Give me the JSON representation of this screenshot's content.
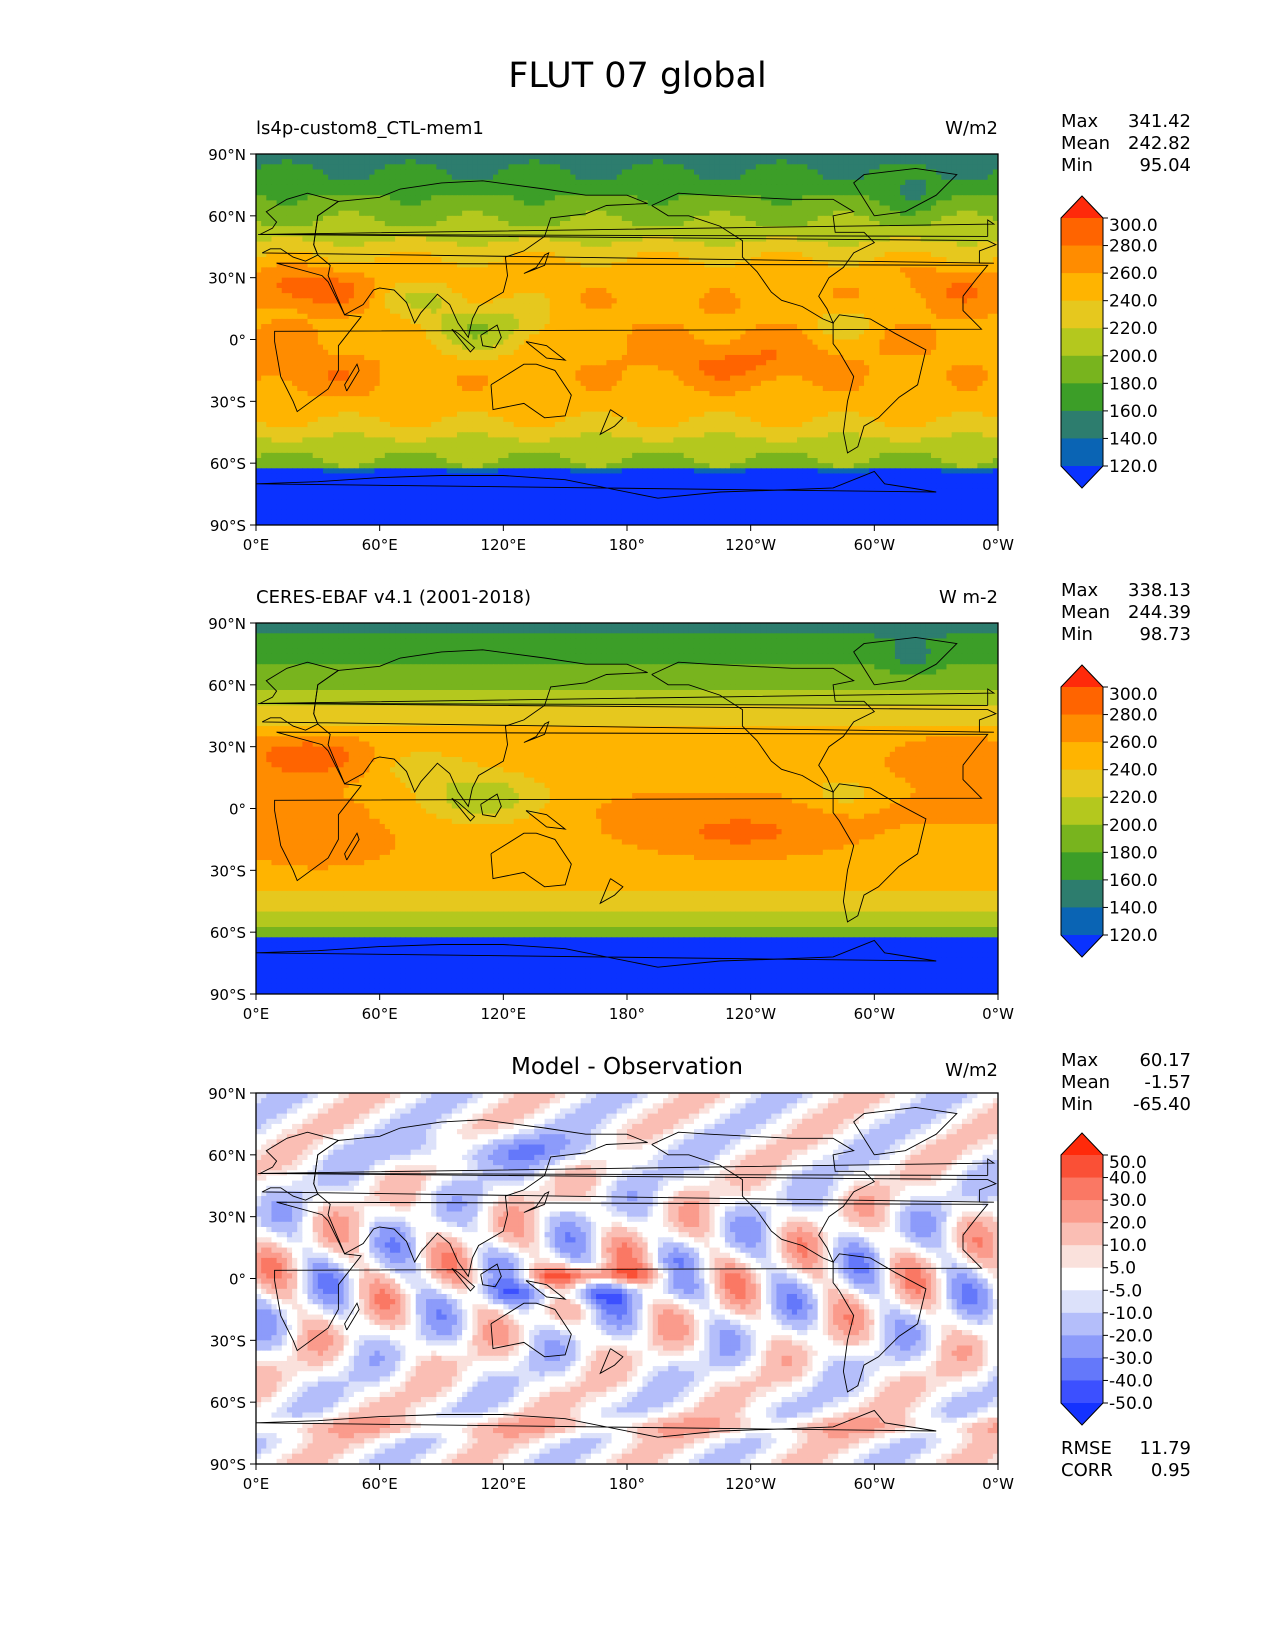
{
  "page": {
    "suptitle": "FLUT 07 global"
  },
  "axes": {
    "lat_ticks": [
      "90°N",
      "60°N",
      "30°N",
      "0°",
      "30°S",
      "60°S",
      "90°S"
    ],
    "lon_ticks": [
      "0°E",
      "60°E",
      "120°E",
      "180°",
      "120°W",
      "60°W",
      "0°W"
    ]
  },
  "panels": [
    {
      "title_left": "ls4p-custom8_CTL-mem1",
      "title_center": "",
      "units": "W/m2",
      "stats": [
        {
          "label": "Max",
          "value": "341.42"
        },
        {
          "label": "Mean",
          "value": "242.82"
        },
        {
          "label": "Min",
          "value": "95.04"
        }
      ],
      "extra_stats": []
    },
    {
      "title_left": "CERES-EBAF v4.1 (2001-2018)",
      "title_center": "",
      "units": "W m-2",
      "stats": [
        {
          "label": "Max",
          "value": "338.13"
        },
        {
          "label": "Mean",
          "value": "244.39"
        },
        {
          "label": "Min",
          "value": "98.73"
        }
      ],
      "extra_stats": []
    },
    {
      "title_left": "",
      "title_center": "Model - Observation",
      "units": "W/m2",
      "stats": [
        {
          "label": "Max",
          "value": "60.17"
        },
        {
          "label": "Mean",
          "value": "-1.57"
        },
        {
          "label": "Min",
          "value": "-65.40"
        }
      ],
      "extra_stats": [
        {
          "label": "RMSE",
          "value": "11.79"
        },
        {
          "label": "CORR",
          "value": "0.95"
        }
      ]
    }
  ],
  "colorbars": {
    "field": {
      "labels": [
        "300.0",
        "280.0",
        "260.0",
        "240.0",
        "220.0",
        "200.0",
        "180.0",
        "160.0",
        "140.0",
        "120.0"
      ],
      "colors_top_to_bottom": [
        "#ff2a0a",
        "#ff6400",
        "#ff8c00",
        "#ffb400",
        "#e6c81e",
        "#b4c81e",
        "#78b41e",
        "#3c9e28",
        "#2d7d6e",
        "#0a64b4",
        "#0a32ff"
      ]
    },
    "diff": {
      "labels": [
        "50.0",
        "40.0",
        "30.0",
        "20.0",
        "10.0",
        "5.0",
        "-5.0",
        "-10.0",
        "-20.0",
        "-30.0",
        "-40.0",
        "-50.0"
      ],
      "colors_top_to_bottom": [
        "#ff2a0a",
        "#fa5036",
        "#fa7864",
        "#fa9b8c",
        "#fabeb4",
        "#fae1dc",
        "#ffffff",
        "#dce1fa",
        "#b4befa",
        "#8c9bfa",
        "#6478fa",
        "#3c50ff",
        "#1432ff"
      ]
    }
  },
  "chart_data": [
    {
      "type": "heatmap",
      "title": "ls4p-custom8_CTL-mem1",
      "units": "W/m2",
      "x_ticks": [
        "0°E",
        "60°E",
        "120°E",
        "180°",
        "120°W",
        "60°W",
        "0°W"
      ],
      "y_ticks": [
        "90°N",
        "60°N",
        "30°N",
        "0°",
        "30°S",
        "60°S",
        "90°S"
      ],
      "xlim": [
        0,
        360
      ],
      "ylim": [
        -90,
        90
      ],
      "color_levels": [
        120,
        140,
        160,
        180,
        200,
        220,
        240,
        260,
        280,
        300
      ],
      "max": 341.42,
      "mean": 242.82,
      "min": 95.04
    },
    {
      "type": "heatmap",
      "title": "CERES-EBAF v4.1 (2001-2018)",
      "units": "W m-2",
      "x_ticks": [
        "0°E",
        "60°E",
        "120°E",
        "180°",
        "120°W",
        "60°W",
        "0°W"
      ],
      "y_ticks": [
        "90°N",
        "60°N",
        "30°N",
        "0°",
        "30°S",
        "60°S",
        "90°S"
      ],
      "xlim": [
        0,
        360
      ],
      "ylim": [
        -90,
        90
      ],
      "color_levels": [
        120,
        140,
        160,
        180,
        200,
        220,
        240,
        260,
        280,
        300
      ],
      "max": 338.13,
      "mean": 244.39,
      "min": 98.73
    },
    {
      "type": "heatmap",
      "title": "Model - Observation",
      "units": "W/m2",
      "x_ticks": [
        "0°E",
        "60°E",
        "120°E",
        "180°",
        "120°W",
        "60°W",
        "0°W"
      ],
      "y_ticks": [
        "90°N",
        "60°N",
        "30°N",
        "0°",
        "30°S",
        "60°S",
        "90°S"
      ],
      "xlim": [
        0,
        360
      ],
      "ylim": [
        -90,
        90
      ],
      "color_levels": [
        -50,
        -40,
        -30,
        -20,
        -10,
        -5,
        5,
        10,
        20,
        30,
        40,
        50
      ],
      "max": 60.17,
      "mean": -1.57,
      "min": -65.4,
      "rmse": 11.79,
      "corr": 0.95
    }
  ]
}
